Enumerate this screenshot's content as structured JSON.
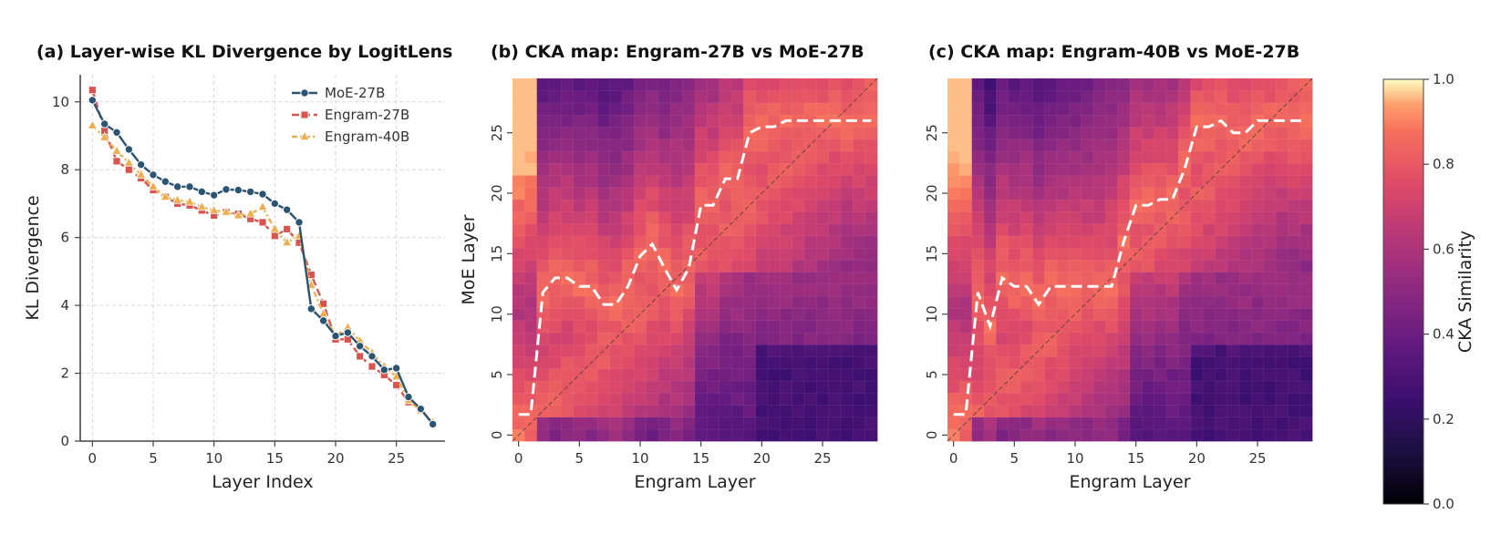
{
  "colors": {
    "moe": "#2b5473",
    "engram27": "#d9534f",
    "engram40": "#f0ad4e",
    "path": "#ffffff"
  },
  "chart_data": [
    {
      "type": "line",
      "title": "(a) Layer-wise KL Divergence by LogitLens",
      "xlabel": "Layer Index",
      "ylabel": "KL Divergence",
      "xlim": [
        -1,
        29
      ],
      "ylim": [
        0,
        10.8
      ],
      "xticks": [
        "0",
        "5",
        "10",
        "15",
        "20",
        "25"
      ],
      "yticks": [
        "0",
        "2",
        "4",
        "6",
        "8",
        "10"
      ],
      "grid": true,
      "legend": "top-right",
      "x": [
        0,
        1,
        2,
        3,
        4,
        5,
        6,
        7,
        8,
        9,
        10,
        11,
        12,
        13,
        14,
        15,
        16,
        17,
        18,
        19,
        20,
        21,
        22,
        23,
        24,
        25,
        26,
        27,
        28
      ],
      "series": [
        {
          "name": "MoE-27B",
          "marker": "circle",
          "values": [
            10.05,
            9.35,
            9.1,
            8.6,
            8.15,
            7.85,
            7.65,
            7.5,
            7.5,
            7.35,
            7.25,
            7.42,
            7.4,
            7.35,
            7.28,
            7.0,
            6.82,
            6.45,
            3.9,
            3.55,
            3.1,
            3.2,
            2.8,
            2.5,
            2.1,
            2.15,
            1.3,
            0.95,
            0.5
          ]
        },
        {
          "name": "Engram-27B",
          "marker": "square",
          "values": [
            10.35,
            9.15,
            8.25,
            8.0,
            7.75,
            7.4,
            7.2,
            7.0,
            6.95,
            6.8,
            6.65,
            6.75,
            6.7,
            6.55,
            6.45,
            6.05,
            6.25,
            5.85,
            4.9,
            4.05,
            3.0,
            3.0,
            2.5,
            2.2,
            1.95,
            1.65,
            1.15,
            0.95,
            0.5
          ]
        },
        {
          "name": "Engram-40B",
          "marker": "triangle",
          "values": [
            9.3,
            8.95,
            8.55,
            8.2,
            7.85,
            7.5,
            7.2,
            7.1,
            7.05,
            6.9,
            6.8,
            6.75,
            6.65,
            6.7,
            6.9,
            6.25,
            5.85,
            6.05,
            4.6,
            3.75,
            3.1,
            3.35,
            2.95,
            2.6,
            2.2,
            1.9,
            1.2,
            0.9,
            0.55
          ]
        }
      ]
    },
    {
      "type": "heatmap",
      "title": "(b) CKA map: Engram-27B vs MoE-27B",
      "xlabel": "Engram Layer",
      "ylabel": "MoE Layer",
      "size": 30,
      "xticks": [
        "0",
        "5",
        "10",
        "15",
        "20",
        "25"
      ],
      "yticks": [
        "0",
        "5",
        "10",
        "15",
        "20",
        "25"
      ],
      "mask_x": [
        0,
        0,
        1,
        2,
        3,
        4,
        5,
        6,
        7,
        8,
        9,
        10,
        11,
        12,
        13,
        14,
        15,
        16,
        17,
        18,
        19,
        20,
        21,
        22,
        23,
        24,
        25,
        26,
        27,
        28,
        29
      ],
      "path": [
        [
          0,
          1.7
        ],
        [
          1,
          1.7
        ],
        [
          2,
          11.8
        ],
        [
          3,
          13
        ],
        [
          4,
          13
        ],
        [
          5,
          12.3
        ],
        [
          6,
          12.3
        ],
        [
          7,
          10.8
        ],
        [
          8,
          10.8
        ],
        [
          9,
          12.3
        ],
        [
          10,
          14.8
        ],
        [
          11,
          15.8
        ],
        [
          12,
          13.8
        ],
        [
          13,
          12
        ],
        [
          14,
          13.8
        ],
        [
          15,
          19
        ],
        [
          16,
          19
        ],
        [
          17,
          21.2
        ],
        [
          18,
          21.2
        ],
        [
          19,
          25
        ],
        [
          20,
          25.5
        ],
        [
          21,
          25.5
        ],
        [
          22,
          26
        ],
        [
          23,
          26
        ],
        [
          24,
          26
        ],
        [
          25,
          26
        ],
        [
          26,
          26
        ],
        [
          27,
          26
        ],
        [
          28,
          26
        ],
        [
          29,
          26
        ]
      ]
    },
    {
      "type": "heatmap",
      "title": "(c) CKA map: Engram-40B vs MoE-27B",
      "xlabel": "Engram Layer",
      "ylabel": "",
      "size": 30,
      "xticks": [
        "0",
        "5",
        "10",
        "15",
        "20",
        "25"
      ],
      "yticks": [
        "0",
        "5",
        "10",
        "15",
        "20",
        "25"
      ],
      "path": [
        [
          0,
          1.7
        ],
        [
          1,
          1.7
        ],
        [
          2,
          11.8
        ],
        [
          3,
          9
        ],
        [
          4,
          13
        ],
        [
          5,
          12.3
        ],
        [
          6,
          12.3
        ],
        [
          7,
          10.8
        ],
        [
          8,
          12.3
        ],
        [
          9,
          12.3
        ],
        [
          10,
          12.3
        ],
        [
          11,
          12.3
        ],
        [
          12,
          12.3
        ],
        [
          13,
          12.3
        ],
        [
          14,
          16
        ],
        [
          15,
          19
        ],
        [
          16,
          19
        ],
        [
          17,
          19.5
        ],
        [
          18,
          19.5
        ],
        [
          19,
          22
        ],
        [
          20,
          25.5
        ],
        [
          21,
          25.5
        ],
        [
          22,
          26
        ],
        [
          23,
          25
        ],
        [
          24,
          25
        ],
        [
          25,
          26
        ],
        [
          26,
          26
        ],
        [
          27,
          26
        ],
        [
          28,
          26
        ],
        [
          29,
          26
        ]
      ]
    }
  ],
  "colorbar": {
    "label": "CKA Similarity",
    "ticks": [
      "0.0",
      "0.2",
      "0.4",
      "0.6",
      "0.8",
      "1.0"
    ]
  }
}
